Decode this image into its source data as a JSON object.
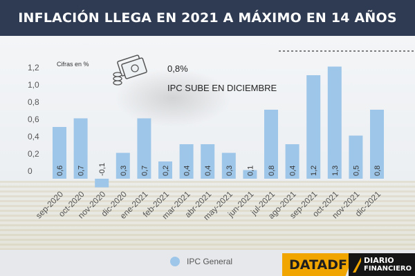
{
  "header": {
    "title": "INFLACIÓN LLEGA EN 2021 A MÁXIMO EN 14 AÑOS"
  },
  "chart_data": {
    "type": "bar",
    "unit_note": "Cifras en %",
    "callout_value": "0,8%",
    "callout_text": "IPC SUBE EN DICIEMBRE",
    "categories": [
      "sep-2020",
      "oct-2020",
      "nov-2020",
      "dic-2020",
      "ene-2021",
      "feb-2021",
      "mar-2021",
      "abr-2021",
      "may-2021",
      "jun-2021",
      "jul-2021",
      "ago-2021",
      "sep-2021",
      "oct-2021",
      "nov-2021",
      "dic-2021"
    ],
    "series": [
      {
        "name": "IPC General",
        "values": [
          0.6,
          0.7,
          -0.1,
          0.3,
          0.7,
          0.2,
          0.4,
          0.4,
          0.3,
          0.1,
          0.8,
          0.4,
          1.2,
          1.3,
          0.5,
          0.8
        ],
        "labels": [
          "0,6",
          "0,7",
          "-0,1",
          "0,3",
          "0,7",
          "0,2",
          "0,4",
          "0,4",
          "0,3",
          "0,1",
          "0,8",
          "0,4",
          "1,2",
          "1,3",
          "0,5",
          "0,8"
        ]
      }
    ],
    "y_ticks": [
      0,
      0.2,
      0.4,
      0.6,
      0.8,
      1.0,
      1.2
    ],
    "y_tick_labels": [
      "0",
      "0,2",
      "0,4",
      "0,6",
      "0,8",
      "1,0",
      "1,2"
    ],
    "ylim": [
      -0.1,
      1.3
    ],
    "bar_color": "#9ec6e8",
    "grid": false,
    "legend_position": "bottom"
  },
  "legend": {
    "label": "IPC General"
  },
  "logos": {
    "datadf": "DATADF",
    "df_line1": "DIARIO",
    "df_line2": "FINANCIERO"
  }
}
